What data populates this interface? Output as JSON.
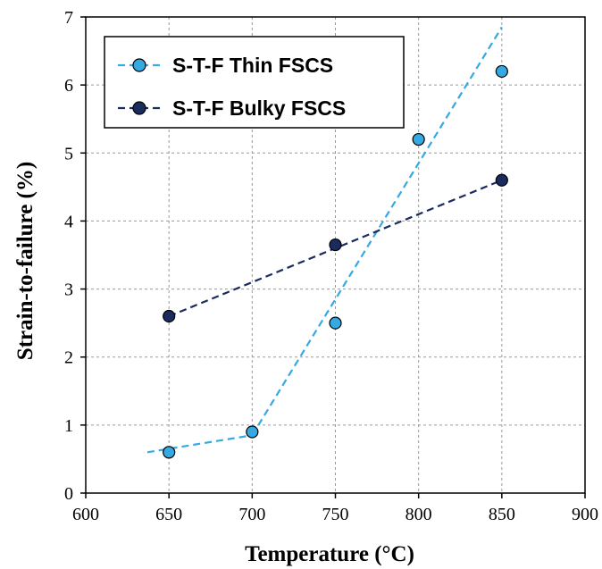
{
  "chart_data": {
    "type": "scatter",
    "title": "",
    "xlabel": "Temperature (°C)",
    "ylabel": "Strain-to-failure (%)",
    "xlim": [
      600,
      900
    ],
    "ylim": [
      0,
      7
    ],
    "x_ticks": [
      "600",
      "650",
      "700",
      "750",
      "800",
      "850",
      "900"
    ],
    "y_ticks": [
      "0",
      "1",
      "2",
      "3",
      "4",
      "5",
      "6",
      "7"
    ],
    "grid": true,
    "legend_position": "top-left",
    "series": [
      {
        "name": "S-T-F Thin FSCS",
        "color": "#35a9e1",
        "points": [
          {
            "x": 650,
            "y": 0.6
          },
          {
            "x": 700,
            "y": 0.9
          },
          {
            "x": 750,
            "y": 2.5
          },
          {
            "x": 800,
            "y": 5.2
          },
          {
            "x": 850,
            "y": 6.2
          }
        ],
        "trend_segments": [
          [
            {
              "x": 637,
              "y": 0.6
            },
            {
              "x": 700,
              "y": 0.85
            }
          ],
          [
            {
              "x": 700,
              "y": 0.85
            },
            {
              "x": 850,
              "y": 6.85
            }
          ]
        ]
      },
      {
        "name": "S-T-F Bulky FSCS",
        "color": "#1a2b5e",
        "points": [
          {
            "x": 650,
            "y": 2.6
          },
          {
            "x": 750,
            "y": 3.65
          },
          {
            "x": 850,
            "y": 4.6
          }
        ],
        "trend_segments": [
          [
            {
              "x": 650,
              "y": 2.6
            },
            {
              "x": 850,
              "y": 4.6
            }
          ]
        ]
      }
    ]
  }
}
